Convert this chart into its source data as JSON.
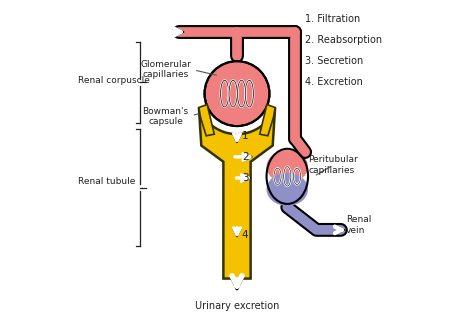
{
  "bg_color": "#ffffff",
  "yellow": "#f5c200",
  "yellow_edge": "#333300",
  "pink": "#f08080",
  "pink_dark": "#e06060",
  "blue_purple": "#9090c8",
  "blue_light": "#b0b0e0",
  "text_color": "#222222",
  "gray": "#666666",
  "white": "#ffffff",
  "black": "#000000",
  "labels": {
    "glomerular": "Glomerular\ncapillaries",
    "bowman": "Bowman's\ncapsule",
    "renal_corpuscle": "Renal corpuscle",
    "renal_tubule": "Renal tubule",
    "peritubular": "Peritubular\ncapillaries",
    "renal_vein": "Renal\nvein",
    "urinary": "Urinary excretion",
    "steps": [
      "1. Filtration",
      "2. Reabsorption",
      "3. Secretion",
      "4. Excretion"
    ]
  },
  "figsize": [
    4.74,
    3.3
  ],
  "dpi": 100
}
